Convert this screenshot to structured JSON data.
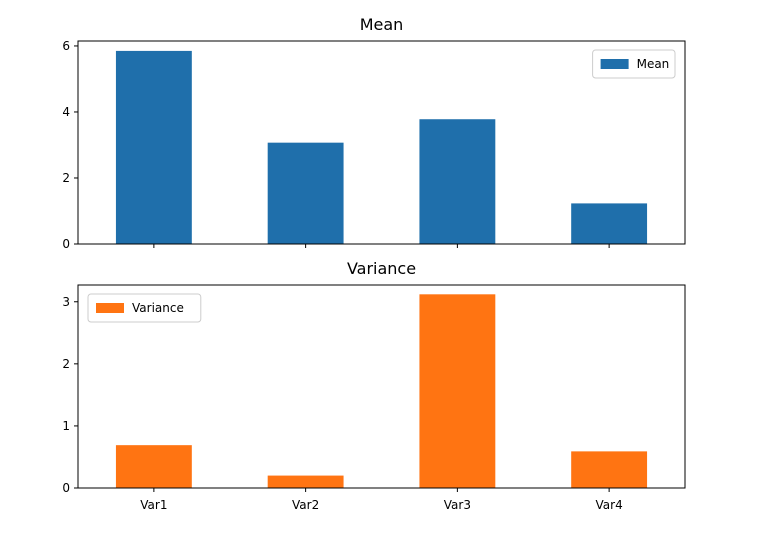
{
  "chart_data": [
    {
      "type": "bar",
      "title": "Mean",
      "categories": [
        "Var1",
        "Var2",
        "Var3",
        "Var4"
      ],
      "series": [
        {
          "name": "Mean",
          "values": [
            5.85,
            3.07,
            3.78,
            1.23
          ],
          "color": "#1f6fab"
        }
      ],
      "ylim": [
        0,
        6.15
      ],
      "yticks": [
        "0",
        "2",
        "4",
        "6"
      ],
      "show_xticklabels": false,
      "grid": false,
      "legend_position": "upper right"
    },
    {
      "type": "bar",
      "title": "Variance",
      "categories": [
        "Var1",
        "Var2",
        "Var3",
        "Var4"
      ],
      "series": [
        {
          "name": "Variance",
          "values": [
            0.69,
            0.2,
            3.12,
            0.59
          ],
          "color": "#ff7412"
        }
      ],
      "ylim": [
        0,
        3.27
      ],
      "yticks": [
        "0",
        "1",
        "2",
        "3"
      ],
      "show_xticklabels": true,
      "grid": false,
      "legend_position": "upper left"
    }
  ]
}
